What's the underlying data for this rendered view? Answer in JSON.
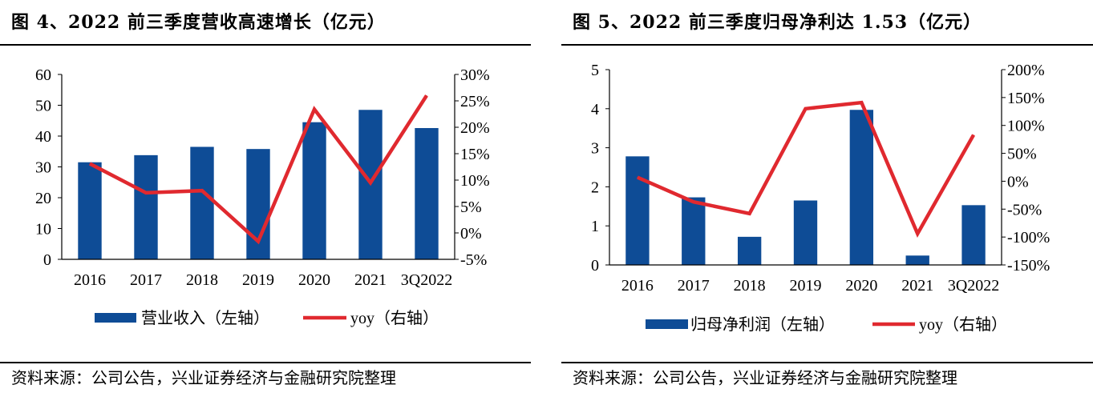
{
  "colors": {
    "bar": "#0E4C96",
    "line": "#E0292F",
    "axis": "#000000"
  },
  "panels": [
    {
      "title": "图 4、2022 前三季度营收高速增长（亿元）",
      "source": "资料来源：公司公告，兴业证券经济与金融研究院整理",
      "chart_data": {
        "type": "bar",
        "categories": [
          "2016",
          "2017",
          "2018",
          "2019",
          "2020",
          "2021",
          "3Q2022"
        ],
        "series": [
          {
            "name": "营业收入（左轴）",
            "type": "bar",
            "axis": "left",
            "values": [
              31.5,
              33.8,
              36.5,
              35.8,
              44.5,
              48.5,
              42.6
            ]
          },
          {
            "name": "yoy（右轴）",
            "type": "line",
            "axis": "right",
            "values": [
              13.1,
              7.6,
              8.0,
              -1.6,
              23.4,
              9.5,
              26.0
            ]
          }
        ],
        "left_axis": {
          "ylim": [
            0,
            60
          ],
          "ticks": [
            "0",
            "10",
            "20",
            "30",
            "40",
            "50",
            "60"
          ]
        },
        "right_axis": {
          "ylim": [
            -5,
            30
          ],
          "ticks": [
            "-5%",
            "0%",
            "5%",
            "10%",
            "15%",
            "20%",
            "25%",
            "30%"
          ],
          "unit": "%"
        },
        "grid": false,
        "legend_position": "bottom"
      }
    },
    {
      "title": "图 5、2022 前三季度归母净利达 1.53（亿元）",
      "source": "资料来源：公司公告，兴业证券经济与金融研究院整理",
      "chart_data": {
        "type": "bar",
        "categories": [
          "2016",
          "2017",
          "2018",
          "2019",
          "2020",
          "2021",
          "3Q2022"
        ],
        "series": [
          {
            "name": "归母净利润（左轴）",
            "type": "bar",
            "axis": "left",
            "values": [
              2.78,
              1.73,
              0.72,
              1.65,
              3.97,
              0.24,
              1.53
            ]
          },
          {
            "name": "yoy（右轴）",
            "type": "line",
            "axis": "right",
            "values": [
              7,
              -37,
              -58,
              130,
              141,
              -94,
              83
            ]
          }
        ],
        "left_axis": {
          "ylim": [
            0,
            5
          ],
          "ticks": [
            "0",
            "1",
            "2",
            "3",
            "4",
            "5"
          ]
        },
        "right_axis": {
          "ylim": [
            -150,
            200
          ],
          "ticks": [
            "-150%",
            "-100%",
            "-50%",
            "0%",
            "50%",
            "100%",
            "150%",
            "200%"
          ],
          "unit": "%"
        },
        "grid": false,
        "legend_position": "bottom"
      }
    }
  ]
}
